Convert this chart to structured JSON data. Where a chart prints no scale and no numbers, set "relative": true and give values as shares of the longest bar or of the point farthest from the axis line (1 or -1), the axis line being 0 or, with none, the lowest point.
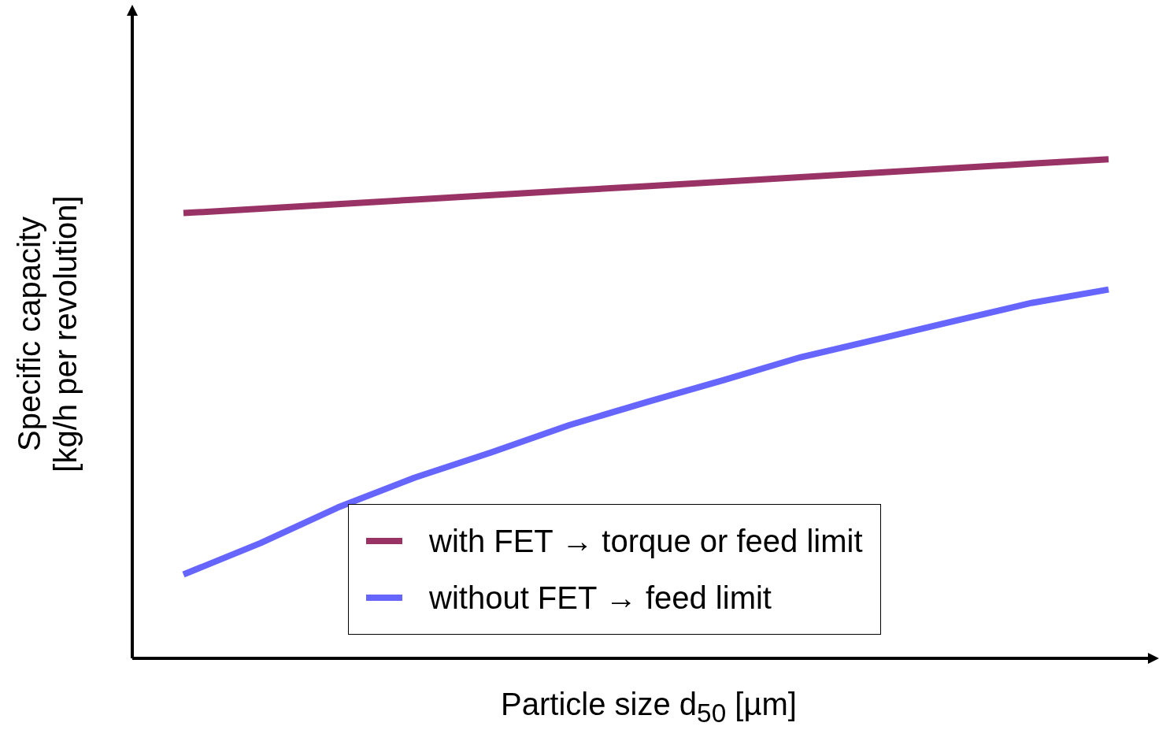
{
  "chart_data": {
    "type": "line",
    "relative": true,
    "xlabel": "Particle size d$_{50}$ [µm]",
    "ylabel": "Specific capacity\n[kg/h per revolution]",
    "categories": [
      null,
      null,
      null,
      null,
      null,
      null,
      null,
      null,
      null,
      null,
      null,
      null,
      null
    ],
    "legend": "bottom",
    "marker": "none",
    "line_style": "solid",
    "grid": false,
    "series": [
      {
        "name": "with FET → torque or feed limit",
        "color": "#993366",
        "values": [
          0.892,
          0.901,
          0.91,
          0.919,
          0.928,
          0.937,
          0.946,
          0.955,
          0.964,
          0.973,
          0.982,
          0.991,
          1.0
        ]
      },
      {
        "name": "without FET → feed limit",
        "color": "#6666ff",
        "values": [
          0.168,
          0.231,
          0.302,
          0.362,
          0.413,
          0.467,
          0.513,
          0.557,
          0.603,
          0.639,
          0.676,
          0.712,
          0.739
        ]
      }
    ]
  }
}
